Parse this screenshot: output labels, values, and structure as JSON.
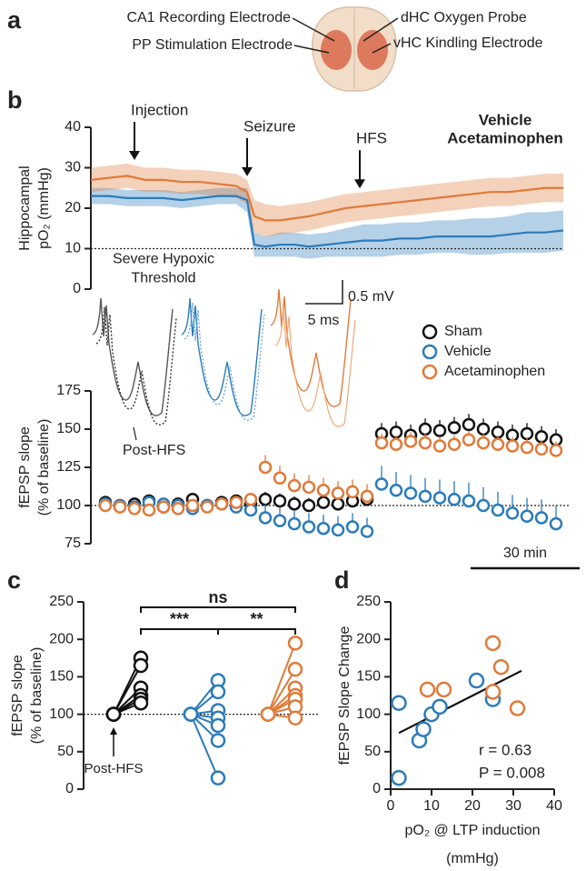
{
  "panel_labels": [
    "a",
    "b",
    "c",
    "d"
  ],
  "diagram": {
    "labels": [
      "CA1 Recording Electrode",
      "PP Stimulation Electrode",
      "dHC Oxygen Probe",
      "vHC Kindling Electrode"
    ]
  },
  "chart_data": [
    {
      "type": "line",
      "ylabel": [
        "Hippocampal",
        "pO₂ (mmHg)"
      ],
      "x": [
        0,
        5,
        10,
        15,
        20,
        25,
        30,
        35,
        40,
        43,
        45,
        48,
        52,
        56,
        60,
        65,
        70,
        75,
        80,
        85,
        90,
        95,
        100,
        105,
        110,
        115,
        120,
        125,
        130
      ],
      "xlim": [
        0,
        130
      ],
      "ylim": [
        0,
        40
      ],
      "yticks": [
        0,
        10,
        20,
        30,
        40
      ],
      "series": [
        {
          "name": "Vehicle",
          "color": "#2b7bba",
          "values": [
            23,
            23,
            22.5,
            22.5,
            22.5,
            22,
            22.5,
            23,
            23,
            22,
            11,
            10.5,
            11,
            11,
            10.5,
            11,
            11.5,
            12,
            12,
            12.5,
            12.5,
            13,
            13,
            13,
            13,
            13.5,
            14,
            14,
            14.5
          ],
          "error": [
            2,
            2,
            2,
            2,
            2,
            2,
            2,
            2,
            2,
            3,
            3,
            2.5,
            3,
            3,
            3,
            3,
            3.5,
            4,
            4,
            4,
            4,
            4,
            4,
            4.5,
            4.5,
            4.5,
            5,
            5,
            5
          ]
        },
        {
          "name": "Acetaminophen",
          "color": "#e07a3a",
          "values": [
            27,
            27.5,
            28,
            27,
            27,
            26.5,
            26.5,
            26,
            25.5,
            24,
            18,
            17,
            17,
            17.5,
            18,
            19,
            20,
            20.5,
            21,
            21.5,
            22,
            22.5,
            23,
            23.5,
            24,
            24,
            24.5,
            25,
            25
          ],
          "error": [
            3,
            3,
            3,
            3,
            3,
            3,
            3,
            3,
            3,
            3,
            4,
            4,
            3.5,
            3.5,
            3.5,
            3.5,
            3.5,
            3.5,
            3.5,
            3.5,
            3.5,
            3.5,
            3.5,
            3.5,
            3.5,
            3.5,
            3.5,
            3.5,
            3.5
          ]
        }
      ],
      "threshold": {
        "value": 10,
        "label": [
          "Severe Hypoxic",
          "Threshold"
        ]
      },
      "events": [
        {
          "label": "Injection",
          "x": 12
        },
        {
          "label": "Seizure",
          "x": 43
        },
        {
          "label": "HFS",
          "x": 74
        }
      ]
    },
    {
      "type": "scatter",
      "ylabel": [
        "fEPSP slope",
        "(% of baseline)"
      ],
      "x": [
        2,
        6,
        10,
        14,
        18,
        22,
        26,
        30,
        34,
        38,
        42,
        46,
        50,
        54,
        58,
        62,
        66,
        70,
        74,
        78,
        82,
        86,
        90,
        94,
        98,
        102,
        106,
        110,
        114,
        118,
        122,
        126
      ],
      "xlim": [
        0,
        130
      ],
      "ylim": [
        75,
        175
      ],
      "yticks": [
        75,
        100,
        125,
        150,
        175
      ],
      "reference": 100,
      "series": [
        {
          "name": "Sham",
          "color": "#111111",
          "values": [
            102,
            100,
            101,
            103,
            99,
            101,
            104,
            100,
            102,
            103,
            101,
            104,
            103,
            101,
            100,
            102,
            101,
            103,
            104,
            147,
            148,
            146,
            150,
            149,
            151,
            153,
            150,
            148,
            146,
            147,
            145,
            143
          ],
          "error": [
            4,
            4,
            4,
            4,
            4,
            4,
            4,
            4,
            4,
            4,
            4,
            5,
            5,
            5,
            5,
            5,
            5,
            5,
            5,
            7,
            7,
            7,
            7,
            7,
            7,
            7,
            7,
            7,
            7,
            7,
            7,
            7
          ]
        },
        {
          "name": "Vehicle",
          "color": "#2b7bba",
          "values": [
            101,
            100,
            99,
            102,
            101,
            100,
            98,
            100,
            101,
            99,
            97,
            92,
            90,
            88,
            86,
            85,
            84,
            86,
            83,
            114,
            110,
            108,
            106,
            105,
            104,
            103,
            100,
            97,
            95,
            93,
            92,
            88
          ],
          "error": [
            4,
            4,
            4,
            4,
            4,
            4,
            4,
            4,
            4,
            4,
            4,
            9,
            9,
            9,
            9,
            9,
            9,
            9,
            9,
            12,
            12,
            12,
            12,
            12,
            12,
            12,
            12,
            12,
            12,
            12,
            12,
            12
          ]
        },
        {
          "name": "Acetaminophen",
          "color": "#e07a3a",
          "values": [
            100,
            99,
            98,
            97,
            99,
            98,
            100,
            99,
            101,
            102,
            104,
            125,
            118,
            113,
            112,
            110,
            108,
            109,
            106,
            141,
            140,
            142,
            141,
            139,
            140,
            143,
            141,
            140,
            139,
            138,
            137,
            136
          ],
          "error": [
            4,
            4,
            4,
            4,
            4,
            4,
            4,
            4,
            4,
            4,
            4,
            8,
            8,
            8,
            8,
            8,
            8,
            8,
            8,
            6,
            6,
            6,
            6,
            6,
            6,
            6,
            6,
            6,
            6,
            6,
            6,
            6
          ]
        }
      ],
      "scalebar": {
        "value": 30,
        "label": "30 min"
      },
      "annotation": "Post-HFS",
      "inset_scale": [
        "0.5 mV",
        "5 ms"
      ]
    },
    {
      "type": "paired",
      "ylabel": [
        "fEPSP slope",
        "(% of baseline)"
      ],
      "ylim": [
        0,
        250
      ],
      "yticks": [
        0,
        50,
        100,
        150,
        200,
        250
      ],
      "baseline": 100,
      "series": [
        {
          "color": "#111111",
          "values": [
            175,
            165,
            135,
            125,
            120,
            115
          ]
        },
        {
          "color": "#2b7bba",
          "values": [
            145,
            130,
            105,
            95,
            85,
            65,
            15
          ]
        },
        {
          "color": "#e07a3a",
          "values": [
            195,
            160,
            135,
            125,
            120,
            110,
            95
          ]
        }
      ],
      "comparisons": [
        {
          "label": "ns",
          "groups": [
            0,
            2
          ]
        },
        {
          "label": "***",
          "groups": [
            0,
            1
          ]
        },
        {
          "label": "**",
          "groups": [
            1,
            2
          ]
        }
      ],
      "annotation": "Post-HFS"
    },
    {
      "type": "scatter",
      "ylabel": "fEPSP Slope Change",
      "xlabel": [
        "pO₂ @ LTP induction",
        "(mmHg)"
      ],
      "xlim": [
        0,
        40
      ],
      "xticks": [
        0,
        10,
        20,
        30,
        40
      ],
      "ylim": [
        0,
        250
      ],
      "yticks": [
        0,
        50,
        100,
        150,
        200,
        250
      ],
      "series": [
        {
          "color": "#2b7bba",
          "x": [
            2,
            2,
            7,
            8,
            10,
            12,
            21,
            25
          ],
          "values": [
            115,
            15,
            65,
            80,
            100,
            110,
            145,
            120
          ]
        },
        {
          "color": "#e07a3a",
          "x": [
            9,
            13,
            25,
            27,
            25,
            31
          ],
          "values": [
            133,
            133,
            195,
            163,
            130,
            108
          ]
        }
      ],
      "fit": {
        "x": [
          2,
          32
        ],
        "y": [
          75,
          158
        ]
      },
      "annotations": [
        "r = 0.63",
        "P = 0.008"
      ]
    }
  ]
}
